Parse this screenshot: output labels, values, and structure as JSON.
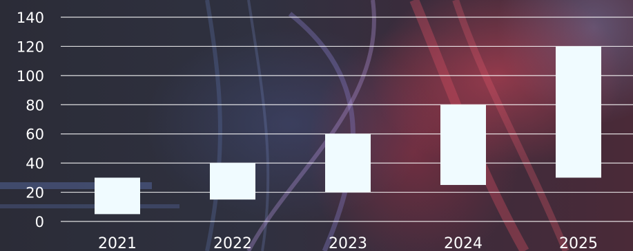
{
  "chart_data": {
    "type": "bar",
    "subtype": "floating-range",
    "categories": [
      "2021",
      "2022",
      "2023",
      "2024",
      "2025"
    ],
    "series": [
      {
        "low": [
          5,
          15,
          20,
          25,
          30
        ],
        "high": [
          30,
          40,
          60,
          80,
          120
        ]
      }
    ],
    "yticks": [
      "0",
      "20",
      "40",
      "60",
      "80",
      "100",
      "120",
      "140"
    ],
    "ylim": [
      0,
      140
    ],
    "grid": true,
    "colors": {
      "bar": "#f0fbff",
      "grid": "#ffffff",
      "text": "#ffffff"
    }
  }
}
